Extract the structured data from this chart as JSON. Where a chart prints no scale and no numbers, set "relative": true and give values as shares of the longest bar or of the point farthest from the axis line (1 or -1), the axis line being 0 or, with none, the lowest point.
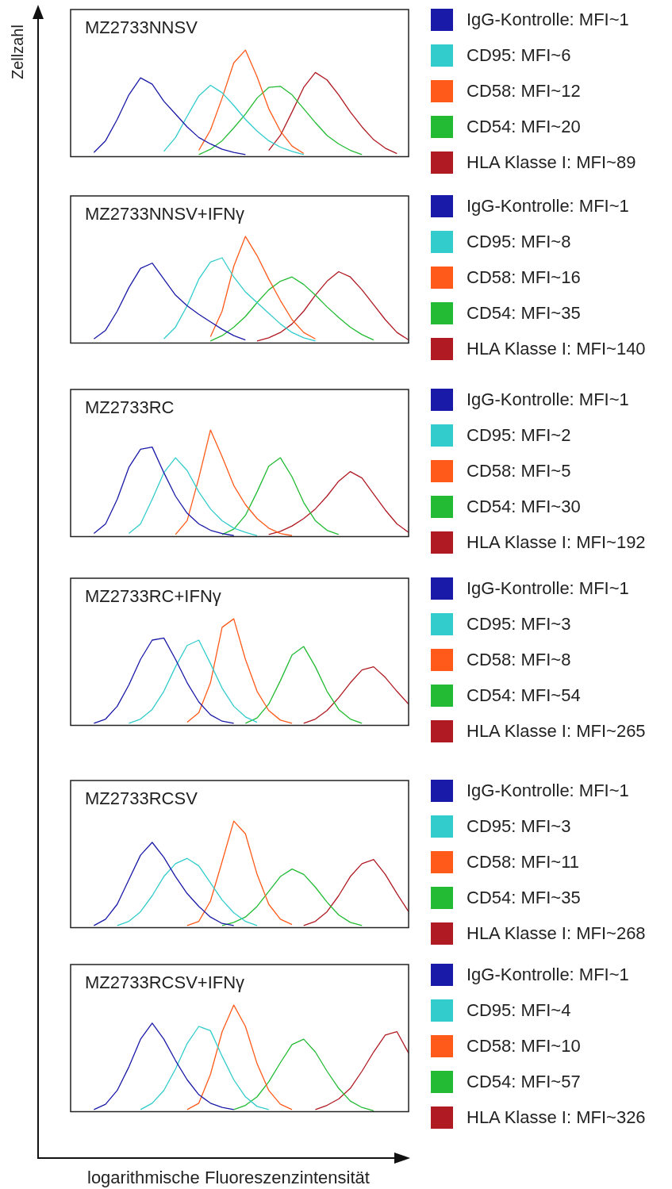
{
  "chart_data": [
    {
      "type": "line",
      "title": "MZ2733NNSV",
      "ylabel": "Zellzahl",
      "relative": true,
      "legend": "right",
      "marker": "none",
      "categories": [
        null,
        null,
        null,
        null,
        null,
        null,
        null,
        null,
        null,
        null,
        null,
        null,
        null,
        null,
        null,
        null,
        null,
        null,
        null,
        null,
        null,
        null,
        null,
        null,
        null,
        null,
        null,
        null,
        null,
        null
      ],
      "series": [
        {
          "name": "IgG-Kontrolle: MFI~1",
          "color": "#1a1aa8",
          "values": [
            null,
            null,
            0.04,
            0.15,
            0.35,
            0.58,
            0.74,
            0.68,
            0.52,
            0.4,
            0.28,
            0.18,
            0.12,
            0.07,
            0.04,
            0.02,
            null,
            null,
            null,
            null,
            null,
            null,
            null,
            null,
            null,
            null,
            null,
            null,
            null,
            null
          ]
        },
        {
          "name": "CD95: MFI~6",
          "color": "#33cccc",
          "values": [
            null,
            null,
            null,
            null,
            null,
            null,
            null,
            null,
            0.05,
            0.18,
            0.38,
            0.57,
            0.67,
            0.6,
            0.48,
            0.35,
            0.24,
            0.15,
            0.09,
            0.05,
            0.02,
            null,
            null,
            null,
            null,
            null,
            null,
            null,
            null,
            null
          ]
        },
        {
          "name": "CD58: MFI~12",
          "color": "#ff5a1a",
          "values": [
            null,
            null,
            null,
            null,
            null,
            null,
            null,
            null,
            null,
            null,
            null,
            0.06,
            0.25,
            0.55,
            0.88,
            1,
            0.75,
            0.45,
            0.24,
            0.1,
            0.03,
            null,
            null,
            null,
            null,
            null,
            null,
            null,
            null,
            null
          ]
        },
        {
          "name": "CD54: MFI~20",
          "color": "#22bb33",
          "values": [
            null,
            null,
            null,
            null,
            null,
            null,
            null,
            null,
            null,
            null,
            null,
            0.02,
            0.07,
            0.15,
            0.27,
            0.4,
            0.55,
            0.65,
            0.66,
            0.58,
            0.45,
            0.32,
            0.2,
            0.12,
            0.06,
            0.02,
            null,
            null,
            null,
            null
          ]
        },
        {
          "name": "HLA Klasse I: MFI~89",
          "color": "#b01a22",
          "values": [
            null,
            null,
            null,
            null,
            null,
            null,
            null,
            null,
            null,
            null,
            null,
            null,
            null,
            null,
            null,
            null,
            null,
            0.06,
            0.2,
            0.42,
            0.65,
            0.79,
            0.72,
            0.58,
            0.42,
            0.28,
            0.16,
            0.08,
            0.03,
            null
          ]
        }
      ]
    },
    {
      "type": "line",
      "title": "MZ2733NNSV+IFNγ",
      "relative": true,
      "legend": "right",
      "marker": "none",
      "categories": [
        null,
        null,
        null,
        null,
        null,
        null,
        null,
        null,
        null,
        null,
        null,
        null,
        null,
        null,
        null,
        null,
        null,
        null,
        null,
        null,
        null,
        null,
        null,
        null,
        null,
        null,
        null,
        null,
        null,
        null
      ],
      "series": [
        {
          "name": "IgG-Kontrolle: MFI~1",
          "color": "#1a1aa8",
          "values": [
            null,
            null,
            0.04,
            0.12,
            0.3,
            0.52,
            0.7,
            0.75,
            0.6,
            0.45,
            0.35,
            0.27,
            0.2,
            0.13,
            0.07,
            0.03,
            null,
            null,
            null,
            null,
            null,
            null,
            null,
            null,
            null,
            null,
            null,
            null,
            null,
            null
          ]
        },
        {
          "name": "CD95: MFI~8",
          "color": "#33cccc",
          "values": [
            null,
            null,
            null,
            null,
            null,
            null,
            null,
            null,
            0.04,
            0.15,
            0.35,
            0.6,
            0.76,
            0.8,
            0.62,
            0.48,
            0.38,
            0.28,
            0.18,
            0.1,
            0.05,
            0.02,
            null,
            null,
            null,
            null,
            null,
            null,
            null,
            null
          ]
        },
        {
          "name": "CD58: MFI~16",
          "color": "#ff5a1a",
          "values": [
            null,
            null,
            null,
            null,
            null,
            null,
            null,
            null,
            null,
            null,
            null,
            null,
            0.06,
            0.3,
            0.72,
            1,
            0.82,
            0.6,
            0.4,
            0.22,
            0.1,
            0.04,
            null,
            null,
            null,
            null,
            null,
            null,
            null,
            null
          ]
        },
        {
          "name": "CD54: MFI~35",
          "color": "#22bb33",
          "values": [
            null,
            null,
            null,
            null,
            null,
            null,
            null,
            null,
            null,
            null,
            null,
            null,
            0.02,
            0.07,
            0.15,
            0.25,
            0.38,
            0.5,
            0.58,
            0.62,
            0.55,
            0.45,
            0.34,
            0.24,
            0.15,
            0.08,
            0.03,
            null,
            null,
            null
          ]
        },
        {
          "name": "HLA Klasse I: MFI~140",
          "color": "#b01a22",
          "values": [
            null,
            null,
            null,
            null,
            null,
            null,
            null,
            null,
            null,
            null,
            null,
            null,
            null,
            null,
            null,
            null,
            0.02,
            0.05,
            0.1,
            0.18,
            0.3,
            0.45,
            0.58,
            0.67,
            0.62,
            0.5,
            0.36,
            0.22,
            0.1,
            0.03
          ]
        }
      ]
    },
    {
      "type": "line",
      "title": "MZ2733RC",
      "relative": true,
      "legend": "right",
      "marker": "none",
      "categories": [
        null,
        null,
        null,
        null,
        null,
        null,
        null,
        null,
        null,
        null,
        null,
        null,
        null,
        null,
        null,
        null,
        null,
        null,
        null,
        null,
        null,
        null,
        null,
        null,
        null,
        null,
        null,
        null,
        null,
        null
      ],
      "series": [
        {
          "name": "IgG-Kontrolle: MFI~1",
          "color": "#1a1aa8",
          "values": [
            null,
            null,
            0.03,
            0.12,
            0.35,
            0.65,
            0.82,
            0.84,
            0.6,
            0.38,
            0.22,
            0.12,
            0.06,
            0.03,
            0.01,
            null,
            null,
            null,
            null,
            null,
            null,
            null,
            null,
            null,
            null,
            null,
            null,
            null,
            null,
            null
          ]
        },
        {
          "name": "CD95: MFI~2",
          "color": "#33cccc",
          "values": [
            null,
            null,
            null,
            null,
            null,
            0.03,
            0.12,
            0.35,
            0.6,
            0.74,
            0.62,
            0.42,
            0.26,
            0.15,
            0.08,
            0.04,
            0.01,
            null,
            null,
            null,
            null,
            null,
            null,
            null,
            null,
            null,
            null,
            null,
            null,
            null
          ]
        },
        {
          "name": "CD58: MFI~5",
          "color": "#ff5a1a",
          "values": [
            null,
            null,
            null,
            null,
            null,
            null,
            null,
            null,
            null,
            0.02,
            0.15,
            0.55,
            1,
            0.75,
            0.48,
            0.3,
            0.17,
            0.08,
            0.03,
            0.01,
            null,
            null,
            null,
            null,
            null,
            null,
            null,
            null,
            null,
            null
          ]
        },
        {
          "name": "CD54: MFI~30",
          "color": "#22bb33",
          "values": [
            null,
            null,
            null,
            null,
            null,
            null,
            null,
            null,
            null,
            null,
            null,
            null,
            null,
            0.02,
            0.07,
            0.2,
            0.42,
            0.66,
            0.74,
            0.56,
            0.32,
            0.15,
            0.06,
            0.02,
            null,
            null,
            null,
            null,
            null,
            null
          ]
        },
        {
          "name": "HLA Klasse I: MFI~192",
          "color": "#b01a22",
          "values": [
            null,
            null,
            null,
            null,
            null,
            null,
            null,
            null,
            null,
            null,
            null,
            null,
            null,
            null,
            null,
            null,
            null,
            0.02,
            0.05,
            0.1,
            0.17,
            0.26,
            0.38,
            0.52,
            0.61,
            0.55,
            0.4,
            0.25,
            0.12,
            0.04
          ]
        }
      ]
    },
    {
      "type": "line",
      "title": "MZ2733RC+IFNγ",
      "relative": true,
      "legend": "right",
      "marker": "none",
      "categories": [
        null,
        null,
        null,
        null,
        null,
        null,
        null,
        null,
        null,
        null,
        null,
        null,
        null,
        null,
        null,
        null,
        null,
        null,
        null,
        null,
        null,
        null,
        null,
        null,
        null,
        null,
        null,
        null,
        null,
        null
      ],
      "series": [
        {
          "name": "IgG-Kontrolle: MFI~1",
          "color": "#1a1aa8",
          "values": [
            null,
            null,
            0.02,
            0.06,
            0.18,
            0.38,
            0.62,
            0.8,
            0.82,
            0.62,
            0.4,
            0.22,
            0.1,
            0.04,
            0.02,
            null,
            null,
            null,
            null,
            null,
            null,
            null,
            null,
            null,
            null,
            null,
            null,
            null,
            null,
            null
          ]
        },
        {
          "name": "CD95: MFI~3",
          "color": "#33cccc",
          "values": [
            null,
            null,
            null,
            null,
            null,
            0.02,
            0.06,
            0.15,
            0.32,
            0.55,
            0.75,
            0.8,
            0.58,
            0.35,
            0.18,
            0.08,
            0.03,
            null,
            null,
            null,
            null,
            null,
            null,
            null,
            null,
            null,
            null,
            null,
            null,
            null
          ]
        },
        {
          "name": "CD58: MFI~8",
          "color": "#ff5a1a",
          "values": [
            null,
            null,
            null,
            null,
            null,
            null,
            null,
            null,
            null,
            null,
            0.03,
            0.12,
            0.4,
            0.92,
            1,
            0.62,
            0.32,
            0.14,
            0.05,
            0.02,
            null,
            null,
            null,
            null,
            null,
            null,
            null,
            null,
            null,
            null
          ]
        },
        {
          "name": "CD54: MFI~54",
          "color": "#22bb33",
          "values": [
            null,
            null,
            null,
            null,
            null,
            null,
            null,
            null,
            null,
            null,
            null,
            null,
            null,
            null,
            null,
            0.02,
            0.07,
            0.2,
            0.42,
            0.66,
            0.74,
            0.55,
            0.32,
            0.15,
            0.06,
            0.02,
            null,
            null,
            null,
            null
          ]
        },
        {
          "name": "HLA Klasse I: MFI~265",
          "color": "#b01a22",
          "values": [
            null,
            null,
            null,
            null,
            null,
            null,
            null,
            null,
            null,
            null,
            null,
            null,
            null,
            null,
            null,
            null,
            null,
            null,
            null,
            null,
            0.02,
            0.06,
            0.14,
            0.26,
            0.4,
            0.52,
            0.55,
            0.45,
            0.32,
            0.2
          ]
        }
      ]
    },
    {
      "type": "line",
      "title": "MZ2733RCSV",
      "relative": true,
      "legend": "right",
      "marker": "none",
      "categories": [
        null,
        null,
        null,
        null,
        null,
        null,
        null,
        null,
        null,
        null,
        null,
        null,
        null,
        null,
        null,
        null,
        null,
        null,
        null,
        null,
        null,
        null,
        null,
        null,
        null,
        null,
        null,
        null,
        null,
        null
      ],
      "series": [
        {
          "name": "IgG-Kontrolle: MFI~1",
          "color": "#1a1aa8",
          "values": [
            null,
            null,
            0.02,
            0.08,
            0.22,
            0.45,
            0.68,
            0.8,
            0.66,
            0.48,
            0.32,
            0.2,
            0.1,
            0.04,
            0.02,
            null,
            null,
            null,
            null,
            null,
            null,
            null,
            null,
            null,
            null,
            null,
            null,
            null,
            null,
            null
          ]
        },
        {
          "name": "CD95: MFI~3",
          "color": "#33cccc",
          "values": [
            null,
            null,
            null,
            null,
            0.02,
            0.06,
            0.15,
            0.3,
            0.48,
            0.6,
            0.65,
            0.58,
            0.42,
            0.26,
            0.14,
            0.06,
            0.02,
            null,
            null,
            null,
            null,
            null,
            null,
            null,
            null,
            null,
            null,
            null,
            null,
            null
          ]
        },
        {
          "name": "CD58: MFI~11",
          "color": "#ff5a1a",
          "values": [
            null,
            null,
            null,
            null,
            null,
            null,
            null,
            null,
            null,
            null,
            0.02,
            0.06,
            0.25,
            0.62,
            1,
            0.88,
            0.5,
            0.22,
            0.08,
            0.03,
            null,
            null,
            null,
            null,
            null,
            null,
            null,
            null,
            null,
            null
          ]
        },
        {
          "name": "CD54: MFI~35",
          "color": "#22bb33",
          "values": [
            null,
            null,
            null,
            null,
            null,
            null,
            null,
            null,
            null,
            null,
            null,
            null,
            null,
            0.02,
            0.05,
            0.1,
            0.2,
            0.34,
            0.48,
            0.55,
            0.5,
            0.38,
            0.24,
            0.12,
            0.05,
            0.02,
            null,
            null,
            null,
            null
          ]
        },
        {
          "name": "HLA Klasse I: MFI~268",
          "color": "#b01a22",
          "values": [
            null,
            null,
            null,
            null,
            null,
            null,
            null,
            null,
            null,
            null,
            null,
            null,
            null,
            null,
            null,
            null,
            null,
            null,
            null,
            null,
            0.02,
            0.06,
            0.15,
            0.3,
            0.48,
            0.6,
            0.64,
            0.5,
            0.32,
            0.15
          ]
        }
      ]
    },
    {
      "type": "line",
      "title": "MZ2733RCSV+IFNγ",
      "xlabel": "logarithmische Fluoreszenzintensität",
      "relative": true,
      "legend": "right",
      "marker": "none",
      "categories": [
        null,
        null,
        null,
        null,
        null,
        null,
        null,
        null,
        null,
        null,
        null,
        null,
        null,
        null,
        null,
        null,
        null,
        null,
        null,
        null,
        null,
        null,
        null,
        null,
        null,
        null,
        null,
        null,
        null,
        null
      ],
      "series": [
        {
          "name": "IgG-Kontrolle: MFI~1",
          "color": "#1a1aa8",
          "values": [
            null,
            null,
            0.02,
            0.07,
            0.2,
            0.42,
            0.68,
            0.83,
            0.68,
            0.48,
            0.3,
            0.16,
            0.08,
            0.04,
            0.02,
            null,
            null,
            null,
            null,
            null,
            null,
            null,
            null,
            null,
            null,
            null,
            null,
            null,
            null,
            null
          ]
        },
        {
          "name": "CD95: MFI~4",
          "color": "#33cccc",
          "values": [
            null,
            null,
            null,
            null,
            null,
            null,
            0.02,
            0.08,
            0.2,
            0.4,
            0.64,
            0.8,
            0.76,
            0.52,
            0.3,
            0.14,
            0.05,
            0.02,
            null,
            null,
            null,
            null,
            null,
            null,
            null,
            null,
            null,
            null,
            null,
            null
          ]
        },
        {
          "name": "CD58: MFI~10",
          "color": "#ff5a1a",
          "values": [
            null,
            null,
            null,
            null,
            null,
            null,
            null,
            null,
            null,
            null,
            0.02,
            0.08,
            0.35,
            0.75,
            1,
            0.8,
            0.45,
            0.2,
            0.07,
            0.02,
            null,
            null,
            null,
            null,
            null,
            null,
            null,
            null,
            null,
            null
          ]
        },
        {
          "name": "CD54: MFI~57",
          "color": "#22bb33",
          "values": [
            null,
            null,
            null,
            null,
            null,
            null,
            null,
            null,
            null,
            null,
            null,
            null,
            null,
            null,
            0.02,
            0.06,
            0.14,
            0.28,
            0.46,
            0.63,
            0.68,
            0.56,
            0.38,
            0.22,
            0.1,
            0.04,
            0.01,
            null,
            null,
            null
          ]
        },
        {
          "name": "HLA Klasse I: MFI~326",
          "color": "#b01a22",
          "values": [
            null,
            null,
            null,
            null,
            null,
            null,
            null,
            null,
            null,
            null,
            null,
            null,
            null,
            null,
            null,
            null,
            null,
            null,
            null,
            null,
            null,
            0.02,
            0.06,
            0.12,
            0.22,
            0.38,
            0.56,
            0.72,
            0.75,
            0.55
          ]
        }
      ]
    }
  ]
}
